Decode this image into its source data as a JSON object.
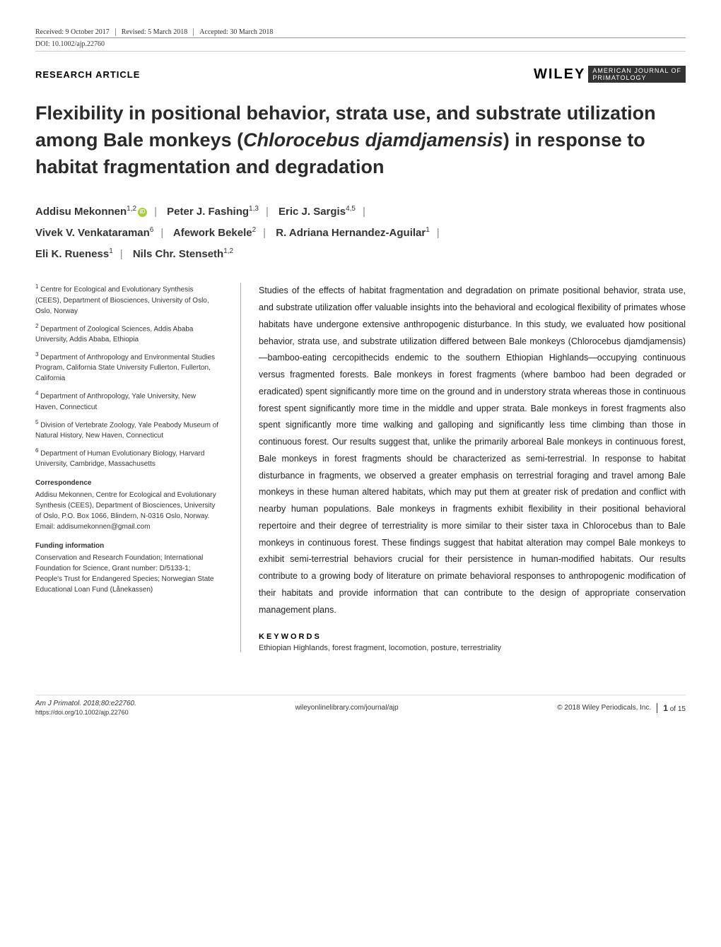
{
  "meta": {
    "received": "Received: 9 October 2017",
    "revised": "Revised: 5 March 2018",
    "accepted": "Accepted: 30 March 2018",
    "doi": "DOI: 10.1002/ajp.22760"
  },
  "article_type": "RESEARCH ARTICLE",
  "publisher": {
    "wiley": "WILEY",
    "journal_top": "AMERICAN JOURNAL OF",
    "journal_bottom": "PRIMATOLOGY"
  },
  "title_parts": {
    "p1": "Flexibility in positional behavior, strata use, and substrate utilization among Bale monkeys (",
    "species": "Chlorocebus djamdjamensis",
    "p2": ") in response to habitat fragmentation and degradation"
  },
  "authors": [
    {
      "name": "Addisu Mekonnen",
      "aff": "1,2",
      "orcid": true
    },
    {
      "name": "Peter J. Fashing",
      "aff": "1,3"
    },
    {
      "name": "Eric J. Sargis",
      "aff": "4,5"
    },
    {
      "name": "Vivek V. Venkataraman",
      "aff": "6"
    },
    {
      "name": "Afework Bekele",
      "aff": "2"
    },
    {
      "name": "R. Adriana Hernandez-Aguilar",
      "aff": "1"
    },
    {
      "name": "Eli K. Rueness",
      "aff": "1"
    },
    {
      "name": "Nils Chr. Stenseth",
      "aff": "1,2"
    }
  ],
  "affiliations": [
    {
      "num": "1",
      "text": "Centre for Ecological and Evolutionary Synthesis (CEES), Department of Biosciences, University of Oslo, Oslo, Norway"
    },
    {
      "num": "2",
      "text": "Department of Zoological Sciences, Addis Ababa University, Addis Ababa, Ethiopia"
    },
    {
      "num": "3",
      "text": "Department of Anthropology and Environmental Studies Program, California State University Fullerton, Fullerton, California"
    },
    {
      "num": "4",
      "text": "Department of Anthropology, Yale University, New Haven, Connecticut"
    },
    {
      "num": "5",
      "text": "Division of Vertebrate Zoology, Yale Peabody Museum of Natural History, New Haven, Connecticut"
    },
    {
      "num": "6",
      "text": "Department of Human Evolutionary Biology, Harvard University, Cambridge, Massachusetts"
    }
  ],
  "correspondence": {
    "head": "Correspondence",
    "text": "Addisu Mekonnen, Centre for Ecological and Evolutionary Synthesis (CEES), Department of Biosciences, University of Oslo, P.O. Box 1066, Blindern, N-0316 Oslo, Norway. Email: addisumekonnen@gmail.com"
  },
  "funding": {
    "head": "Funding information",
    "text": "Conservation and Research Foundation; International Foundation for Science, Grant number: D/5133-1; People's Trust for Endangered Species; Norwegian State Educational Loan Fund (Lånekassen)"
  },
  "abstract": "Studies of the effects of habitat fragmentation and degradation on primate positional behavior, strata use, and substrate utilization offer valuable insights into the behavioral and ecological flexibility of primates whose habitats have undergone extensive anthropogenic disturbance. In this study, we evaluated how positional behavior, strata use, and substrate utilization differed between Bale monkeys (Chlorocebus djamdjamensis)—bamboo-eating cercopithecids endemic to the southern Ethiopian Highlands—occupying continuous versus fragmented forests. Bale monkeys in forest fragments (where bamboo had been degraded or eradicated) spent significantly more time on the ground and in understory strata whereas those in continuous forest spent significantly more time in the middle and upper strata. Bale monkeys in forest fragments also spent significantly more time walking and galloping and significantly less time climbing than those in continuous forest. Our results suggest that, unlike the primarily arboreal Bale monkeys in continuous forest, Bale monkeys in forest fragments should be characterized as semi-terrestrial. In response to habitat disturbance in fragments, we observed a greater emphasis on terrestrial foraging and travel among Bale monkeys in these human altered habitats, which may put them at greater risk of predation and conflict with nearby human populations. Bale monkeys in fragments exhibit flexibility in their positional behavioral repertoire and their degree of terrestriality is more similar to their sister taxa in Chlorocebus than to Bale monkeys in continuous forest. These findings suggest that habitat alteration may compel Bale monkeys to exhibit semi-terrestrial behaviors crucial for their persistence in human-modified habitats. Our results contribute to a growing body of literature on primate behavioral responses to anthropogenic modification of their habitats and provide information that can contribute to the design of appropriate conservation management plans.",
  "keywords": {
    "head": "KEYWORDS",
    "text": "Ethiopian Highlands, forest fragment, locomotion, posture, terrestriality"
  },
  "footer": {
    "citation": "Am J Primatol. 2018;80:e22760.",
    "doi_link": "https://doi.org/10.1002/ajp.22760",
    "center": "wileyonlinelibrary.com/journal/ajp",
    "copyright": "© 2018 Wiley Periodicals, Inc.",
    "page": "1 of 15"
  }
}
